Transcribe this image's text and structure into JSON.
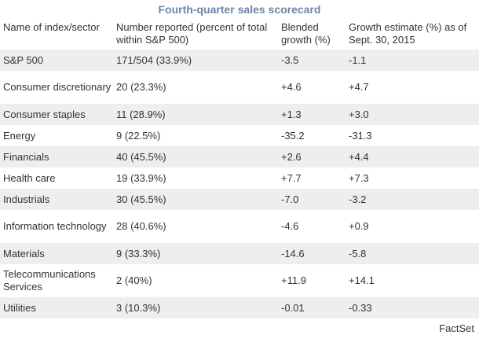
{
  "title": "Fourth-quarter sales scorecard",
  "headers": [
    "Name of index/sector",
    "Number reported (percent of total within S&P 500)",
    "Blended growth (%)",
    "Growth estimate (%) as of Sept. 30, 2015"
  ],
  "rows": [
    [
      "S&P 500",
      "171/504 (33.9%)",
      "-3.5",
      "-1.1"
    ],
    [
      "Consumer discretionary",
      "20 (23.3%)",
      "+4.6",
      "+4.7"
    ],
    [
      "Consumer staples",
      "11 (28.9%)",
      "+1.3",
      "+3.0"
    ],
    [
      "Energy",
      "9 (22.5%)",
      "-35.2",
      "-31.3"
    ],
    [
      "Financials",
      "40 (45.5%)",
      "+2.6",
      "+4.4"
    ],
    [
      "Health care",
      "19 (33.9%)",
      "+7.7",
      "+7.3"
    ],
    [
      "Industrials",
      "30 (45.5%)",
      "-7.0",
      "-3.2"
    ],
    [
      "Information technology",
      "28 (40.6%)",
      "-4.6",
      "+0.9"
    ],
    [
      "Materials",
      "9 (33.3%)",
      "-14.6",
      "-5.8"
    ],
    [
      "Telecommunications Services",
      "2 (40%)",
      "+11.9",
      "+14.1"
    ],
    [
      "Utilities",
      "3 (10.3%)",
      "-0.01",
      "-0.33"
    ]
  ],
  "source": "FactSet",
  "colors": {
    "title": "#6b86a6",
    "stripe": "#eeeeee",
    "text": "#333333"
  }
}
